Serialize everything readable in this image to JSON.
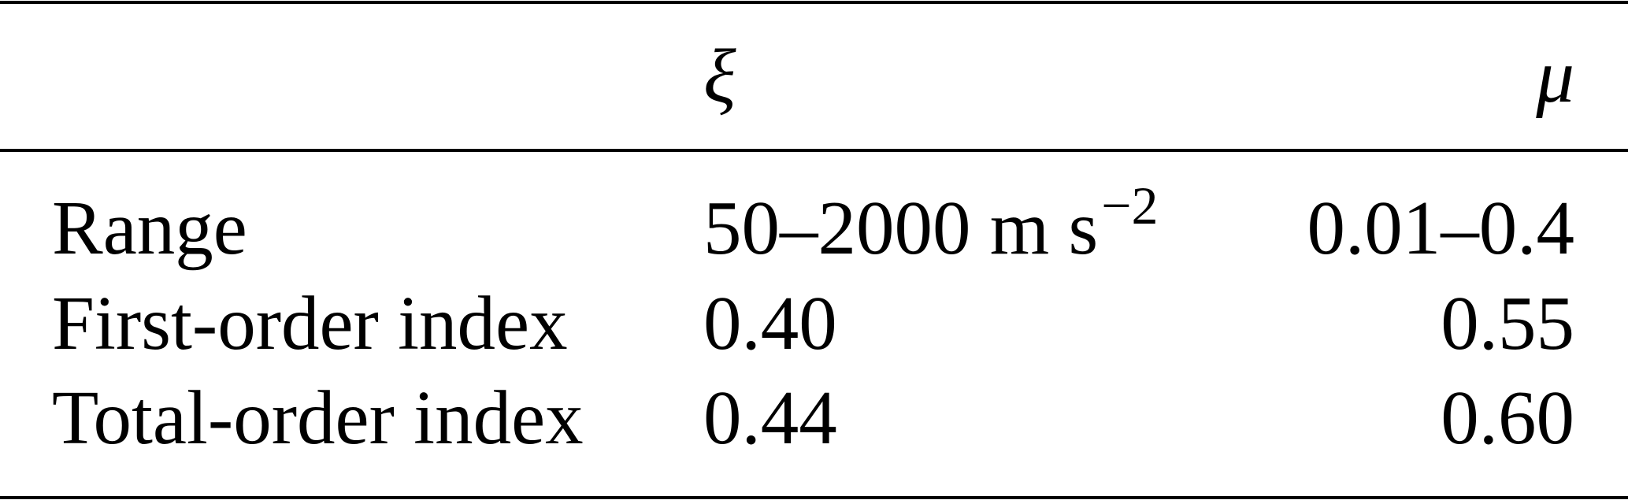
{
  "table": {
    "columns": [
      "",
      "ξ",
      "μ"
    ],
    "rows": [
      {
        "label": "Range",
        "xi": "50–2000 m s",
        "xi_exponent": "−2",
        "mu": "0.01–0.4"
      },
      {
        "label": "First-order index",
        "xi": "0.40",
        "mu": "0.55"
      },
      {
        "label": "Total-order index",
        "xi": "0.44",
        "mu": "0.60"
      }
    ]
  }
}
